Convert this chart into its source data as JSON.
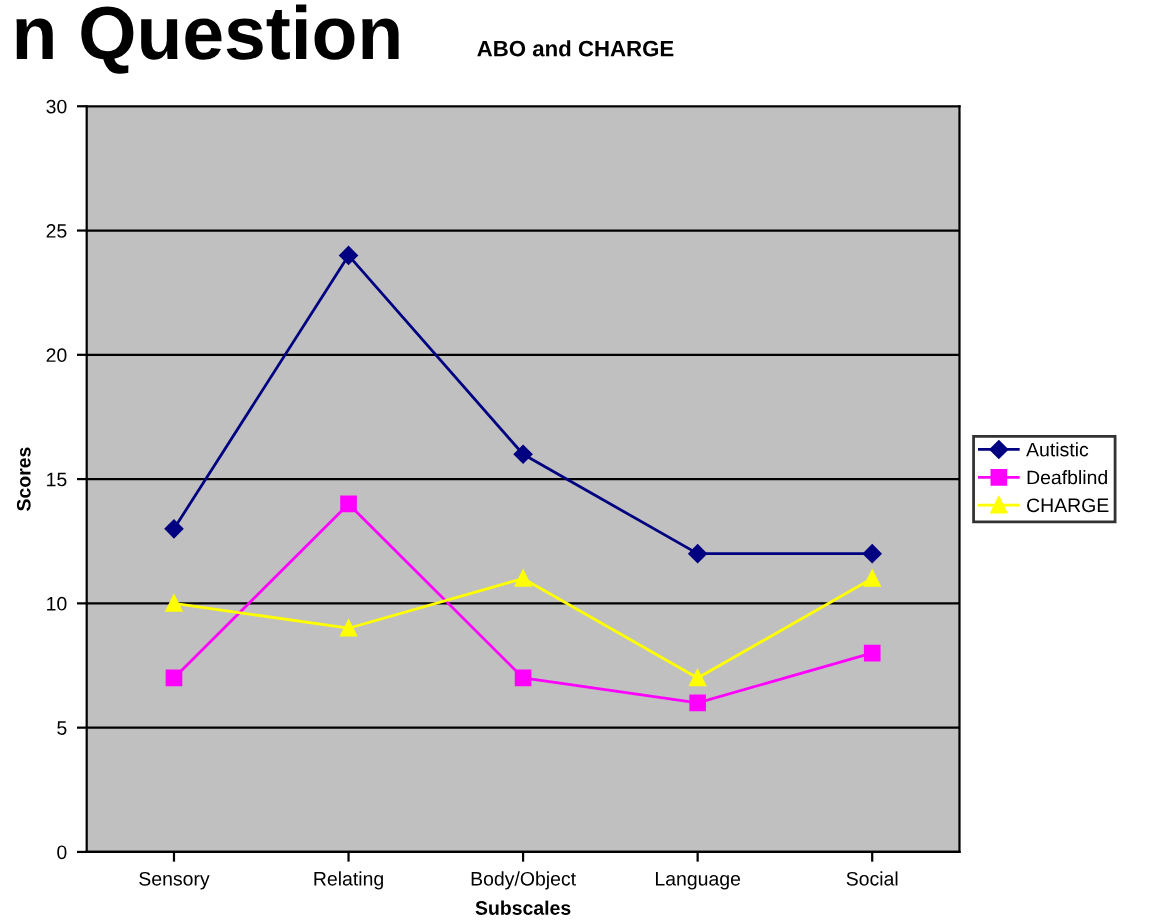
{
  "chart_data": {
    "type": "line",
    "title": "ABO and CHARGE",
    "annotations": [
      "n Question"
    ],
    "xlabel": "Subscales",
    "ylabel": "Scores",
    "categories": [
      "Sensory",
      "Relating",
      "Body/Object",
      "Language",
      "Social"
    ],
    "series": [
      {
        "name": "Autistic",
        "color": "#000080",
        "marker": "diamond",
        "values": [
          13,
          24,
          16,
          12,
          12
        ]
      },
      {
        "name": "Deafblind",
        "color": "#ff00ff",
        "marker": "square",
        "values": [
          7,
          14,
          7,
          6,
          8
        ]
      },
      {
        "name": "CHARGE",
        "color": "#ffff00",
        "marker": "triangle",
        "values": [
          10,
          9,
          11,
          7,
          11
        ]
      }
    ],
    "ylim": [
      0,
      30
    ],
    "yticks": [
      0,
      5,
      10,
      15,
      20,
      25,
      30
    ],
    "grid": "y",
    "legend": "right",
    "line_style": "solid"
  }
}
